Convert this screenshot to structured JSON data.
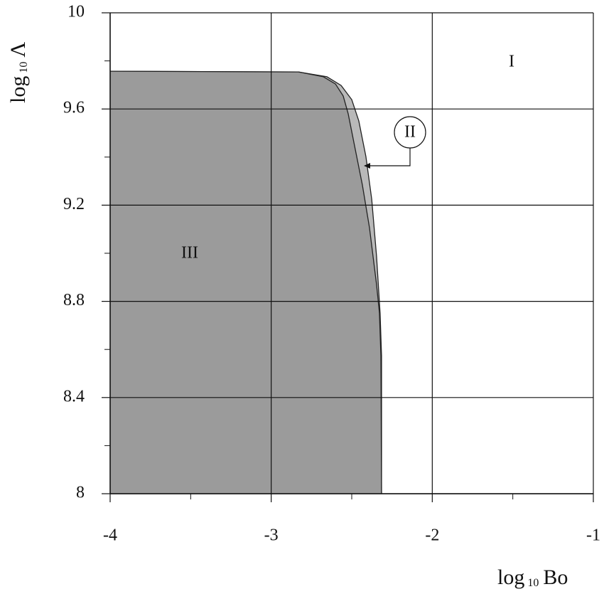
{
  "chart_data": {
    "type": "area",
    "x_label": {
      "base": "log",
      "sub": "10",
      "var": "Bo"
    },
    "y_label": {
      "base": "log",
      "sub": "10",
      "var": "Λ"
    },
    "annotations": [
      "I",
      "II",
      "III"
    ],
    "xlim": [
      -4,
      -1
    ],
    "xticks": [
      -4,
      -3,
      -2,
      -1
    ],
    "xminorticks": [
      -3.5,
      -2.5,
      -1.5
    ],
    "ylim": [
      8,
      10
    ],
    "yticks": [
      8,
      8.4,
      8.8,
      9.2,
      9.6,
      10
    ],
    "yminorticks": [
      8.2,
      8.6,
      9.0,
      9.4,
      9.8
    ],
    "grid": true,
    "series": [
      {
        "color": "#b9b9b9",
        "x": [
          -4,
          -2.831,
          -2.654,
          -2.566,
          -2.5,
          -2.456,
          -2.412,
          -2.376,
          -2.346,
          -2.324,
          -2.315,
          -2.315
        ],
        "values": [
          9.757,
          9.754,
          9.734,
          9.698,
          9.639,
          9.55,
          9.402,
          9.225,
          8.988,
          8.751,
          8.574,
          8
        ]
      },
      {
        "color": "#9b9b9b",
        "x": [
          -4,
          -2.831,
          -2.676,
          -2.601,
          -2.553,
          -2.522,
          -2.487,
          -2.434,
          -2.39,
          -2.346,
          -2.328,
          -2.319,
          -2.315
        ],
        "values": [
          9.757,
          9.754,
          9.734,
          9.704,
          9.654,
          9.58,
          9.462,
          9.284,
          9.107,
          8.87,
          8.751,
          8.574,
          8
        ]
      }
    ]
  }
}
